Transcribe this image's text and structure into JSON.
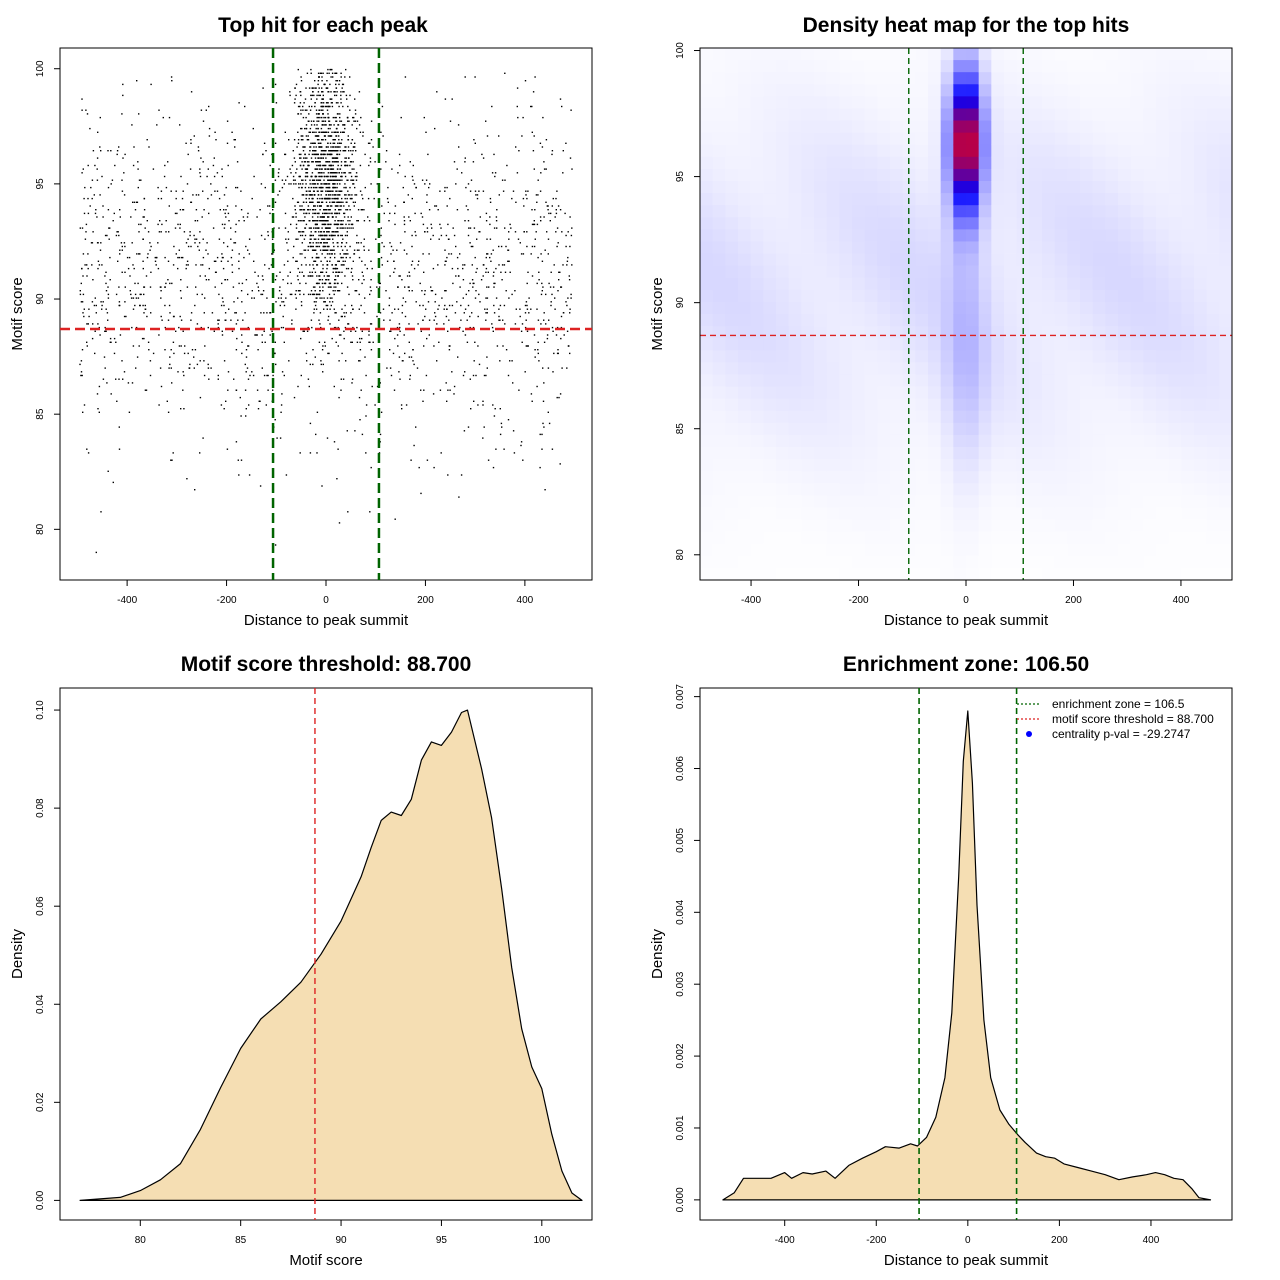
{
  "chart_data": [
    {
      "panel": "scatter",
      "type": "scatter",
      "title": "Top hit for each peak",
      "xlabel": "Distance to peak summit",
      "ylabel": "Motif score",
      "xlim": [
        -535,
        535
      ],
      "ylim": [
        77.8,
        100.9
      ],
      "xticks": [
        -400,
        -200,
        0,
        200,
        400
      ],
      "yticks": [
        80,
        85,
        90,
        95,
        100
      ],
      "xtick_labels": [
        "-400",
        "-200",
        "0",
        "200",
        "400"
      ],
      "ytick_labels": [
        "80",
        "85",
        "90",
        "95",
        "100"
      ],
      "vlines": [
        -106.5,
        106.5
      ],
      "hline": 88.7,
      "colors": {
        "points": "#000000",
        "vlines": "#006400",
        "hline": "#dd2222"
      }
    },
    {
      "panel": "heatmap",
      "type": "heatmap",
      "title": "Density heat map for the top hits",
      "xlabel": "Distance to peak summit",
      "ylabel": "Motif score",
      "xlim": [
        -495,
        495
      ],
      "ylim": [
        79.0,
        100.1
      ],
      "xticks": [
        -400,
        -200,
        0,
        200,
        400
      ],
      "yticks": [
        80,
        85,
        90,
        95,
        100
      ],
      "xtick_labels": [
        "-400",
        "-200",
        "0",
        "200",
        "400"
      ],
      "ytick_labels": [
        "80",
        "85",
        "90",
        "95",
        "100"
      ],
      "vlines": [
        -106.5,
        106.5
      ],
      "hline": 88.7,
      "colors": {
        "low": "#ffffff",
        "mid": "#0000ff",
        "high": "#ff0000",
        "vlines": "#006400",
        "hline": "#dd2222"
      }
    },
    {
      "panel": "score-density",
      "type": "area",
      "title": "Motif score threshold: 88.700",
      "xlabel": "Motif score",
      "ylabel": "Density",
      "xlim": [
        76.0,
        102.5
      ],
      "ylim": [
        -0.004,
        0.1045
      ],
      "xticks": [
        80,
        85,
        90,
        95,
        100
      ],
      "yticks": [
        0.0,
        0.02,
        0.04,
        0.06,
        0.08,
        0.1
      ],
      "xtick_labels": [
        "80",
        "85",
        "90",
        "95",
        "100"
      ],
      "ytick_labels": [
        "0.00",
        "0.02",
        "0.04",
        "0.06",
        "0.08",
        "0.10"
      ],
      "x": [
        77,
        79,
        80,
        81,
        82,
        83,
        84,
        85,
        86,
        87,
        88,
        89,
        90,
        91,
        91.5,
        92,
        92.5,
        93,
        93.5,
        94,
        94.5,
        95,
        95.5,
        96,
        96.3,
        97,
        97.5,
        98,
        98.5,
        99,
        99.5,
        100,
        100.5,
        101,
        101.5,
        102
      ],
      "y": [
        0.0,
        0.0006,
        0.002,
        0.0042,
        0.0075,
        0.0145,
        0.023,
        0.031,
        0.037,
        0.0405,
        0.0445,
        0.0502,
        0.057,
        0.066,
        0.072,
        0.0775,
        0.0792,
        0.0785,
        0.0818,
        0.0898,
        0.0935,
        0.0928,
        0.0955,
        0.0995,
        0.1,
        0.088,
        0.078,
        0.0635,
        0.0475,
        0.035,
        0.0272,
        0.0228,
        0.0135,
        0.006,
        0.0015,
        0.0
      ],
      "vline": 88.7,
      "colors": {
        "fill": "#f5deb3",
        "line": "#000000",
        "vline": "#dd2222"
      }
    },
    {
      "panel": "distance-density",
      "type": "area",
      "title": "Enrichment zone: 106.50",
      "xlabel": "Distance to peak summit",
      "ylabel": "Density",
      "xlim": [
        -585,
        577
      ],
      "ylim": [
        -0.00028,
        0.00712
      ],
      "xticks": [
        -400,
        -200,
        0,
        200,
        400
      ],
      "yticks": [
        0.0,
        0.001,
        0.002,
        0.003,
        0.004,
        0.005,
        0.006,
        0.007
      ],
      "xtick_labels": [
        "-400",
        "-200",
        "0",
        "200",
        "400"
      ],
      "ytick_labels": [
        "0.000",
        "0.001",
        "0.002",
        "0.003",
        "0.004",
        "0.005",
        "0.006",
        "0.007"
      ],
      "x": [
        -535,
        -510,
        -490,
        -460,
        -430,
        -400,
        -385,
        -360,
        -340,
        -310,
        -290,
        -260,
        -230,
        -200,
        -180,
        -150,
        -125,
        -110,
        -90,
        -70,
        -50,
        -35,
        -20,
        -10,
        0,
        10,
        20,
        35,
        50,
        70,
        90,
        110,
        125,
        150,
        170,
        190,
        210,
        240,
        270,
        300,
        330,
        360,
        390,
        410,
        430,
        450,
        470,
        490,
        505,
        530
      ],
      "y": [
        0.0,
        0.0001,
        0.0003,
        0.0003,
        0.0003,
        0.00038,
        0.0003,
        0.00038,
        0.00036,
        0.0004,
        0.0003,
        0.00048,
        0.00058,
        0.00067,
        0.00074,
        0.00072,
        0.00078,
        0.00075,
        0.00087,
        0.00115,
        0.0017,
        0.0026,
        0.0045,
        0.0061,
        0.0068,
        0.0058,
        0.0041,
        0.0025,
        0.0017,
        0.00125,
        0.00105,
        0.0009,
        0.0008,
        0.00065,
        0.0006,
        0.00058,
        0.0005,
        0.00045,
        0.0004,
        0.00035,
        0.00028,
        0.00032,
        0.00035,
        0.00038,
        0.00035,
        0.0003,
        0.00028,
        0.00015,
        3e-05,
        0.0
      ],
      "vlines": [
        -106.5,
        106.5
      ],
      "legend": [
        {
          "label": "enrichment zone = 106.5",
          "color": "#006400",
          "kind": "line"
        },
        {
          "label": "motif score threshold = 88.700",
          "color": "#dd2222",
          "kind": "line"
        },
        {
          "label": "centrality p-val = -29.2747",
          "color": "#0000ff",
          "kind": "point"
        }
      ],
      "legend_position": "top-right",
      "colors": {
        "fill": "#f5deb3",
        "line": "#000000",
        "vlines": "#006400"
      }
    }
  ]
}
